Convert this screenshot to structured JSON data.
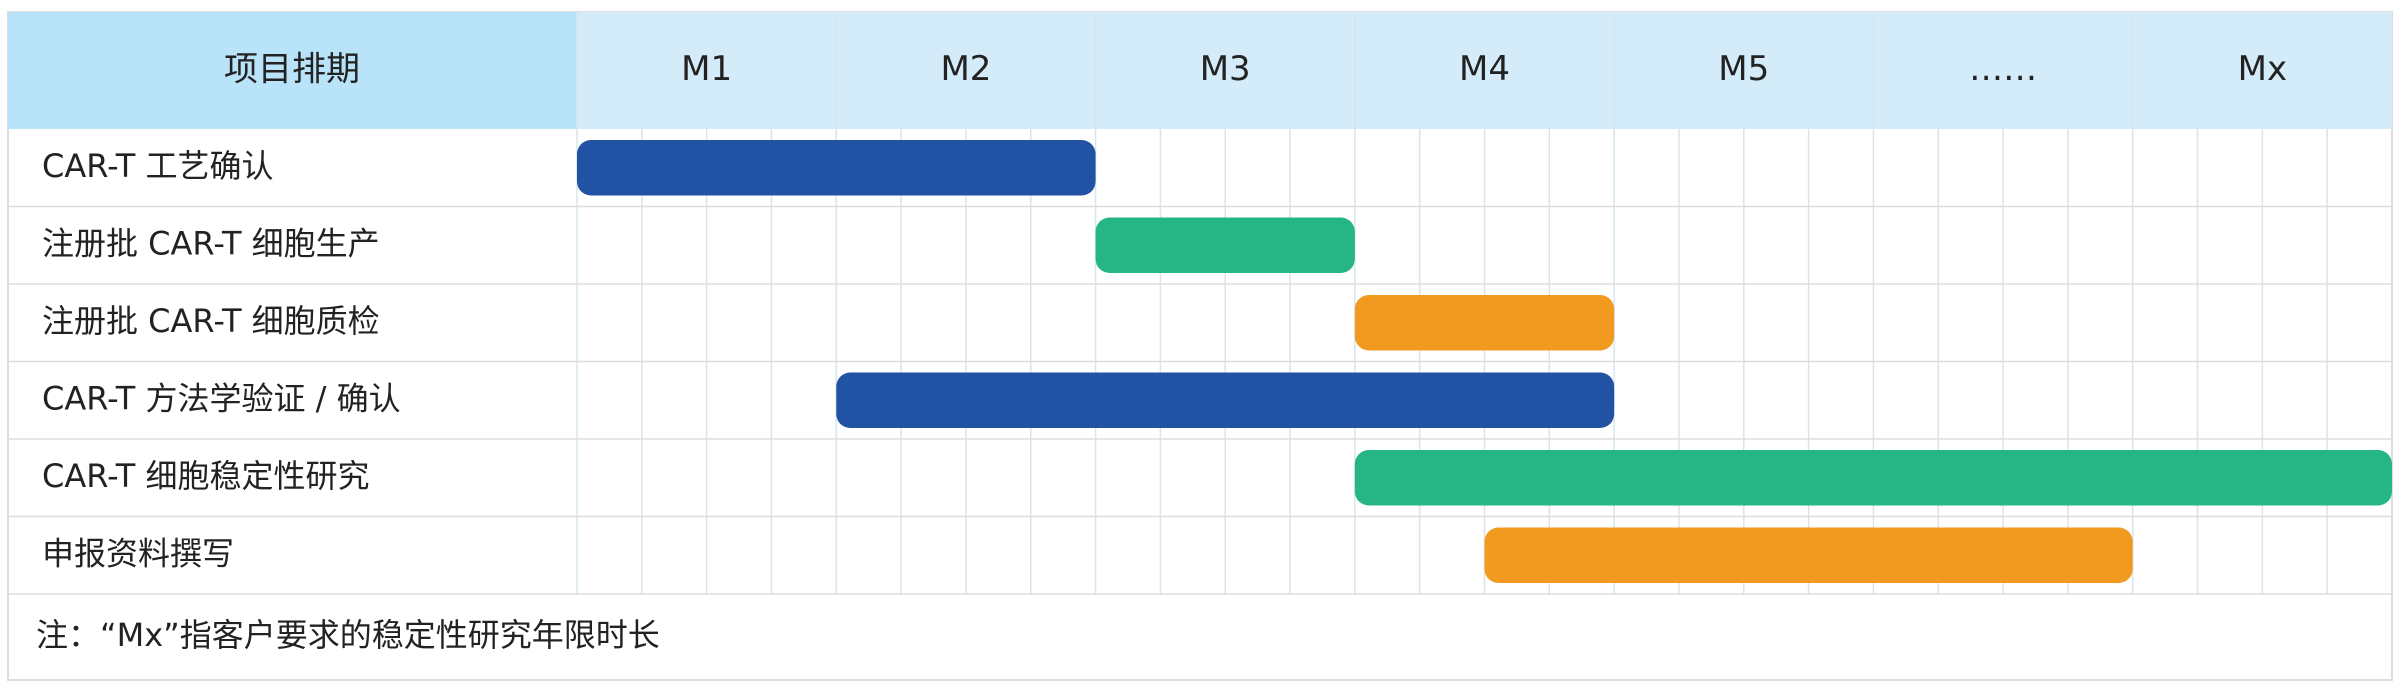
{
  "chart_data": {
    "type": "gantt",
    "corner_label": "项目排期",
    "categories": [
      "M1",
      "M2",
      "M3",
      "M4",
      "M5",
      "……",
      "Mx"
    ],
    "xlim": [
      0,
      7
    ],
    "tasks": [
      {
        "name": "CAR-T 工艺确认",
        "start": 0,
        "end": 2,
        "color": "#2152a3"
      },
      {
        "name": "注册批 CAR-T 细胞生产",
        "start": 2,
        "end": 3,
        "color": "#26b584"
      },
      {
        "name": "注册批 CAR-T 细胞质检",
        "start": 3,
        "end": 4,
        "color": "#f29a20"
      },
      {
        "name": "CAR-T 方法学验证 / 确认",
        "start": 1,
        "end": 4,
        "color": "#2152a3"
      },
      {
        "name": "CAR-T 细胞稳定性研究",
        "start": 3,
        "end": 7,
        "color": "#26b584"
      },
      {
        "name": "申报资料撰写",
        "start": 3.5,
        "end": 6,
        "color": "#f29a20"
      }
    ],
    "note": "注：“Mx”指客户要求的稳定性研究年限时长"
  }
}
